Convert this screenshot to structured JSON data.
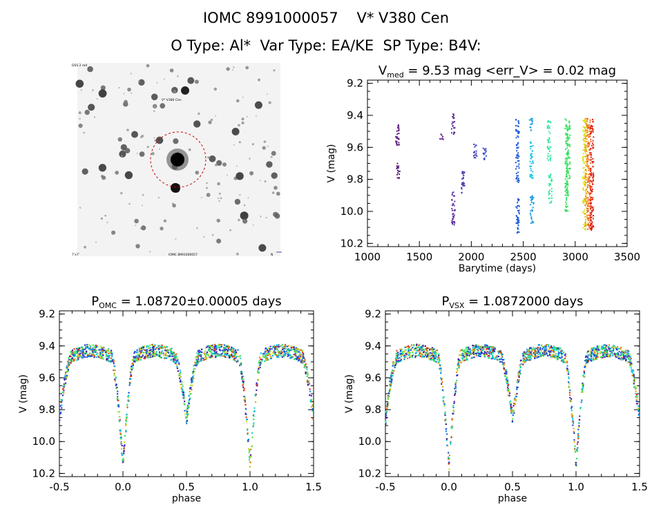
{
  "header": {
    "line1": "IOMC 8991000057    V* V380 Cen",
    "line2": "O Type: Al*  Var Type: EA/KE  SP Type: B4V:"
  },
  "colors": {
    "mark": "#c80000",
    "axis": "#000000"
  },
  "chart_data": [
    {
      "type": "image",
      "name": "finding-chart",
      "labels": {
        "top_left": "DSS 2 red",
        "target": "V* V380 Cen",
        "bottom_left": "7'x7'",
        "bottom_center": "IOMC 8991000057",
        "bottom_right": "N"
      }
    },
    {
      "type": "scatter",
      "name": "light-curve-time",
      "title_main": "V",
      "title_sub": "med",
      "title_rest": " = 9.53 mag <err_V> = 0.02 mag",
      "xlabel": "Barytime (days)",
      "ylabel": "V (mag)",
      "xlim": [
        1000,
        3500
      ],
      "ylim": [
        10.22,
        9.18
      ],
      "y_inverted": true,
      "xticks": [
        "1000",
        "1500",
        "2000",
        "2500",
        "3000",
        "3500"
      ],
      "yticks": [
        "9.2",
        "9.4",
        "9.6",
        "9.8",
        "10.0",
        "10.2"
      ],
      "color_by": "time",
      "segments": [
        {
          "x": 1290,
          "ymin": 9.45,
          "ymax": 9.6,
          "color": "#5a1a7a"
        },
        {
          "x": 1295,
          "ymin": 9.7,
          "ymax": 9.8,
          "color": "#5a1a7a"
        },
        {
          "x": 1715,
          "ymin": 9.5,
          "ymax": 9.55,
          "color": "#6a2a9a"
        },
        {
          "x": 1825,
          "ymin": 9.38,
          "ymax": 9.52,
          "color": "#5a2aa0"
        },
        {
          "x": 1828,
          "ymin": 9.88,
          "ymax": 10.09,
          "color": "#5a2aa0"
        },
        {
          "x": 1920,
          "ymin": 9.75,
          "ymax": 9.9,
          "color": "#4a3ab0"
        },
        {
          "x": 2040,
          "ymin": 9.58,
          "ymax": 9.68,
          "color": "#4040b8"
        },
        {
          "x": 2130,
          "ymin": 9.6,
          "ymax": 9.68,
          "color": "#3a4ac0"
        },
        {
          "x": 2445,
          "ymin": 9.42,
          "ymax": 9.82,
          "color": "#1a5ad8"
        },
        {
          "x": 2448,
          "ymin": 9.92,
          "ymax": 10.15,
          "color": "#1a5ad8"
        },
        {
          "x": 2575,
          "ymin": 9.42,
          "ymax": 9.5,
          "color": "#1aa0e0"
        },
        {
          "x": 2580,
          "ymin": 9.55,
          "ymax": 9.8,
          "color": "#1ac8e8"
        },
        {
          "x": 2585,
          "ymin": 9.9,
          "ymax": 10.08,
          "color": "#1a9ae0"
        },
        {
          "x": 2750,
          "ymin": 9.43,
          "ymax": 9.7,
          "color": "#3ae8a0"
        },
        {
          "x": 2760,
          "ymin": 9.75,
          "ymax": 9.95,
          "color": "#3ae8a0"
        },
        {
          "x": 2920,
          "ymin": 9.42,
          "ymax": 10.0,
          "color": "#3ae060"
        },
        {
          "x": 2935,
          "ymin": 9.42,
          "ymax": 9.8,
          "color": "#3ae060"
        },
        {
          "x": 3090,
          "ymin": 9.42,
          "ymax": 10.13,
          "color": "#d8e020"
        },
        {
          "x": 3110,
          "ymin": 9.42,
          "ymax": 10.1,
          "color": "#f0a020"
        },
        {
          "x": 3135,
          "ymin": 9.42,
          "ymax": 10.12,
          "color": "#f06020"
        },
        {
          "x": 3160,
          "ymin": 9.42,
          "ymax": 10.12,
          "color": "#e02010"
        }
      ]
    },
    {
      "type": "scatter",
      "name": "phased-omc",
      "title_main": "P",
      "title_sub": "OMC",
      "title_rest": " = 1.08720±0.00005 days",
      "xlabel": "phase",
      "ylabel": "V (mag)",
      "xlim": [
        -0.5,
        1.5
      ],
      "ylim": [
        10.22,
        9.18
      ],
      "y_inverted": true,
      "xticks": [
        "-0.5",
        "0.0",
        "0.5",
        "1.0",
        "1.5"
      ],
      "yticks": [
        "9.2",
        "9.4",
        "9.6",
        "9.8",
        "10.0",
        "10.2"
      ],
      "model": {
        "max_mag": 9.43,
        "primary_min": 10.15,
        "secondary_min": 9.86,
        "eclipse_halfwidth": 0.09,
        "scatter": 0.04
      }
    },
    {
      "type": "scatter",
      "name": "phased-vsx",
      "title_main": "P",
      "title_sub": "VSX",
      "title_rest": " = 1.0872000 days",
      "xlabel": "phase",
      "ylabel": "V (mag)",
      "xlim": [
        -0.5,
        1.5
      ],
      "ylim": [
        10.22,
        9.18
      ],
      "y_inverted": true,
      "xticks": [
        "-0.5",
        "0.0",
        "0.5",
        "1.0",
        "1.5"
      ],
      "yticks": [
        "9.2",
        "9.4",
        "9.6",
        "9.8",
        "10.0",
        "10.2"
      ],
      "model": {
        "max_mag": 9.43,
        "primary_min": 10.15,
        "secondary_min": 9.86,
        "eclipse_halfwidth": 0.09,
        "scatter": 0.04
      }
    }
  ]
}
